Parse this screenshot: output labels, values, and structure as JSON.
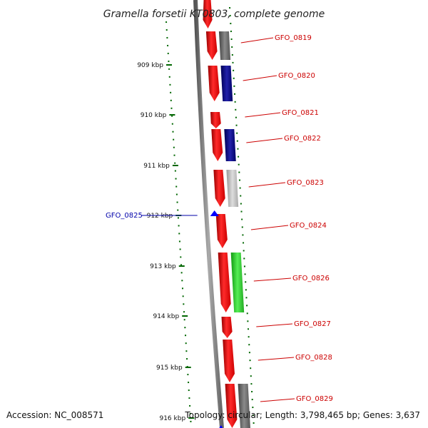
{
  "title": "Gramella forsetii KT0803, complete genome",
  "footer": {
    "accession": "Accession: NC_008571",
    "summary": "Topology: circular; Length: 3,798,465 bp; Genes: 3,637"
  },
  "colors": {
    "forward_gene": "#ff0000",
    "reverse_gene": "#0000ff",
    "label_forward": "#cc0000",
    "label_reverse": "#0000aa",
    "tick": "#006600",
    "backbone": "#777777",
    "cog_gray": "#777777",
    "cog_navy": "#000088",
    "cog_light": "#bbbbbb",
    "cog_green": "#33cc33"
  },
  "ruler": {
    "ticks": [
      {
        "label": "909 kbp"
      },
      {
        "label": "910 kbp"
      },
      {
        "label": "911 kbp"
      },
      {
        "label": "912 kbp"
      },
      {
        "label": "913 kbp"
      },
      {
        "label": "914 kbp"
      },
      {
        "label": "915 kbp"
      },
      {
        "label": "916 kbp"
      }
    ]
  },
  "genes": [
    {
      "name": "GFO_0819",
      "cog": "cog_gray"
    },
    {
      "name": "GFO_0820",
      "cog": "cog_navy"
    },
    {
      "name": "GFO_0821",
      "cog": ""
    },
    {
      "name": "GFO_0822",
      "cog": "cog_navy"
    },
    {
      "name": "GFO_0823",
      "cog": "cog_light"
    },
    {
      "name": "GFO_0824",
      "cog": ""
    },
    {
      "name": "GFO_0825",
      "cog": "",
      "strand": "reverse"
    },
    {
      "name": "GFO_0826",
      "cog": "cog_green"
    },
    {
      "name": "GFO_0827",
      "cog": ""
    },
    {
      "name": "GFO_0828",
      "cog": ""
    },
    {
      "name": "GFO_0829",
      "cog": "cog_gray"
    }
  ]
}
